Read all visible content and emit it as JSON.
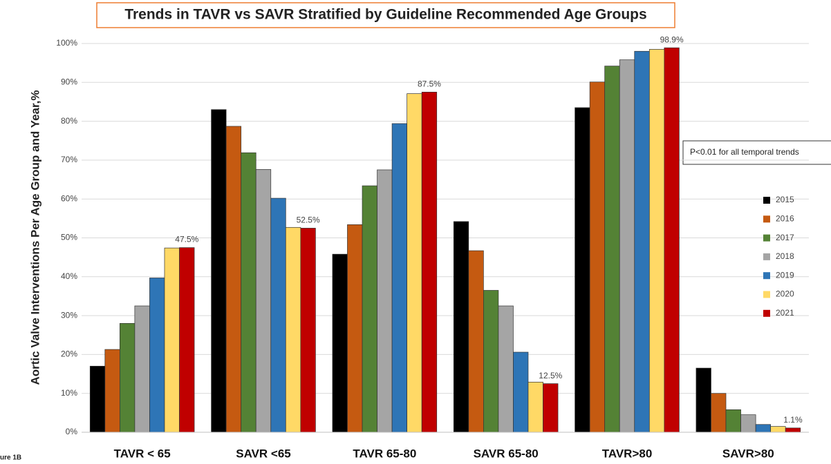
{
  "chart_data": {
    "type": "bar",
    "title": "Trends in TAVR vs SAVR Stratified by Guideline Recommended Age Groups",
    "y_label": "Aortic Valve Interventions Per Age Group and Year,%",
    "annotation": "P<0.01 for all temporal trends",
    "figure_label": "ure 1B",
    "categories": [
      "TAVR < 65",
      "SAVR <65",
      "TAVR 65-80",
      "SAVR 65-80",
      "TAVR>80",
      "SAVR>80"
    ],
    "series": [
      {
        "name": "2015",
        "color": "#000000",
        "values": [
          17,
          83,
          45.8,
          54.2,
          83.5,
          16.5
        ]
      },
      {
        "name": "2016",
        "color": "#c55a11",
        "values": [
          21.3,
          78.7,
          53.4,
          46.7,
          90.1,
          10
        ]
      },
      {
        "name": "2017",
        "color": "#548235",
        "values": [
          28,
          71.9,
          63.4,
          36.5,
          94.2,
          5.8
        ]
      },
      {
        "name": "2018",
        "color": "#a5a5a5",
        "values": [
          32.5,
          67.6,
          67.5,
          32.5,
          95.8,
          4.5
        ]
      },
      {
        "name": "2019",
        "color": "#2e75b6",
        "values": [
          39.7,
          60.2,
          79.4,
          20.6,
          98,
          2
        ]
      },
      {
        "name": "2020",
        "color": "#ffd966",
        "values": [
          47.4,
          52.7,
          87.1,
          12.9,
          98.5,
          1.5
        ]
      },
      {
        "name": "2021",
        "color": "#c00000",
        "values": [
          47.5,
          52.5,
          87.5,
          12.5,
          98.9,
          1.1
        ],
        "value_labels": [
          "47.5%",
          "52.5%",
          "87.5%",
          "12.5%",
          "98.9%",
          "1.1%"
        ]
      }
    ],
    "ylim": [
      0,
      100
    ],
    "yticks": [
      {
        "value": 0,
        "label": "0%"
      },
      {
        "value": 10,
        "label": "10%"
      },
      {
        "value": 20,
        "label": "20%"
      },
      {
        "value": 30,
        "label": "30%"
      },
      {
        "value": 40,
        "label": "40%"
      },
      {
        "value": 50,
        "label": "50%"
      },
      {
        "value": 60,
        "label": "60%"
      },
      {
        "value": 70,
        "label": "70%"
      },
      {
        "value": 80,
        "label": "80%"
      },
      {
        "value": 90,
        "label": "90%"
      },
      {
        "value": 100,
        "label": "100%"
      }
    ],
    "grid": true
  }
}
